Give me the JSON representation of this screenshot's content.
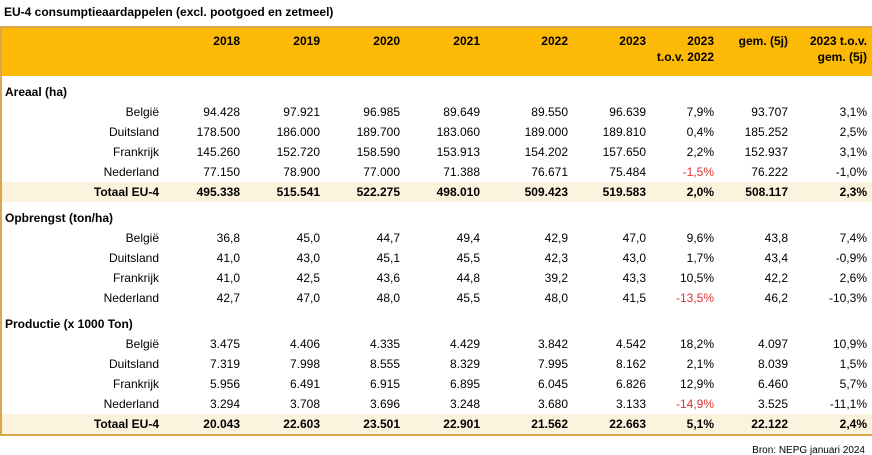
{
  "title": "EU-4 consumptieaardappelen (excl. pootgoed en zetmeel)",
  "source": "Bron: NEPG januari 2024",
  "colors": {
    "header_band_bg": "#fcb905",
    "table_border": "#d9a74e",
    "total_row_bg": "#fcf3df",
    "negative_accent_red": "#e03030"
  },
  "chart_data": {
    "type": "table",
    "title": "EU-4 consumptieaardappelen (excl. pootgoed en zetmeel)",
    "columns": [
      "",
      "2018",
      "2019",
      "2020",
      "2021",
      "2022",
      "2023",
      "2023\nt.o.v. 2022",
      "gem. (5j)",
      "2023 t.o.v.\ngem. (5j)"
    ],
    "red_negative_column_index": 6,
    "sections": [
      {
        "label": "Areaal (ha)",
        "rows": [
          {
            "label": "België",
            "is_total": false,
            "values": [
              "94.428",
              "97.921",
              "96.985",
              "89.649",
              "89.550",
              "96.639",
              "7,9%",
              "93.707",
              "3,1%"
            ]
          },
          {
            "label": "Duitsland",
            "is_total": false,
            "values": [
              "178.500",
              "186.000",
              "189.700",
              "183.060",
              "189.000",
              "189.810",
              "0,4%",
              "185.252",
              "2,5%"
            ]
          },
          {
            "label": "Frankrijk",
            "is_total": false,
            "values": [
              "145.260",
              "152.720",
              "158.590",
              "153.913",
              "154.202",
              "157.650",
              "2,2%",
              "152.937",
              "3,1%"
            ]
          },
          {
            "label": "Nederland",
            "is_total": false,
            "values": [
              "77.150",
              "78.900",
              "77.000",
              "71.388",
              "76.671",
              "75.484",
              "-1,5%",
              "76.222",
              "-1,0%"
            ]
          },
          {
            "label": "Totaal EU-4",
            "is_total": true,
            "values": [
              "495.338",
              "515.541",
              "522.275",
              "498.010",
              "509.423",
              "519.583",
              "2,0%",
              "508.117",
              "2,3%"
            ]
          }
        ]
      },
      {
        "label": "Opbrengst (ton/ha)",
        "rows": [
          {
            "label": "België",
            "is_total": false,
            "values": [
              "36,8",
              "45,0",
              "44,7",
              "49,4",
              "42,9",
              "47,0",
              "9,6%",
              "43,8",
              "7,4%"
            ]
          },
          {
            "label": "Duitsland",
            "is_total": false,
            "values": [
              "41,0",
              "43,0",
              "45,1",
              "45,5",
              "42,3",
              "43,0",
              "1,7%",
              "43,4",
              "-0,9%"
            ]
          },
          {
            "label": "Frankrijk",
            "is_total": false,
            "values": [
              "41,0",
              "42,5",
              "43,6",
              "44,8",
              "39,2",
              "43,3",
              "10,5%",
              "42,2",
              "2,6%"
            ]
          },
          {
            "label": "Nederland",
            "is_total": false,
            "values": [
              "42,7",
              "47,0",
              "48,0",
              "45,5",
              "48,0",
              "41,5",
              "-13,5%",
              "46,2",
              "-10,3%"
            ]
          }
        ]
      },
      {
        "label": "Productie (x 1000 Ton)",
        "rows": [
          {
            "label": "België",
            "is_total": false,
            "values": [
              "3.475",
              "4.406",
              "4.335",
              "4.429",
              "3.842",
              "4.542",
              "18,2%",
              "4.097",
              "10,9%"
            ]
          },
          {
            "label": "Duitsland",
            "is_total": false,
            "values": [
              "7.319",
              "7.998",
              "8.555",
              "8.329",
              "7.995",
              "8.162",
              "2,1%",
              "8.039",
              "1,5%"
            ]
          },
          {
            "label": "Frankrijk",
            "is_total": false,
            "values": [
              "5.956",
              "6.491",
              "6.915",
              "6.895",
              "6.045",
              "6.826",
              "12,9%",
              "6.460",
              "5,7%"
            ]
          },
          {
            "label": "Nederland",
            "is_total": false,
            "values": [
              "3.294",
              "3.708",
              "3.696",
              "3.248",
              "3.680",
              "3.133",
              "-14,9%",
              "3.525",
              "-11,1%"
            ]
          },
          {
            "label": "Totaal EU-4",
            "is_total": true,
            "values": [
              "20.043",
              "22.603",
              "23.501",
              "22.901",
              "21.562",
              "22.663",
              "5,1%",
              "22.122",
              "2,4%"
            ]
          }
        ]
      }
    ]
  }
}
